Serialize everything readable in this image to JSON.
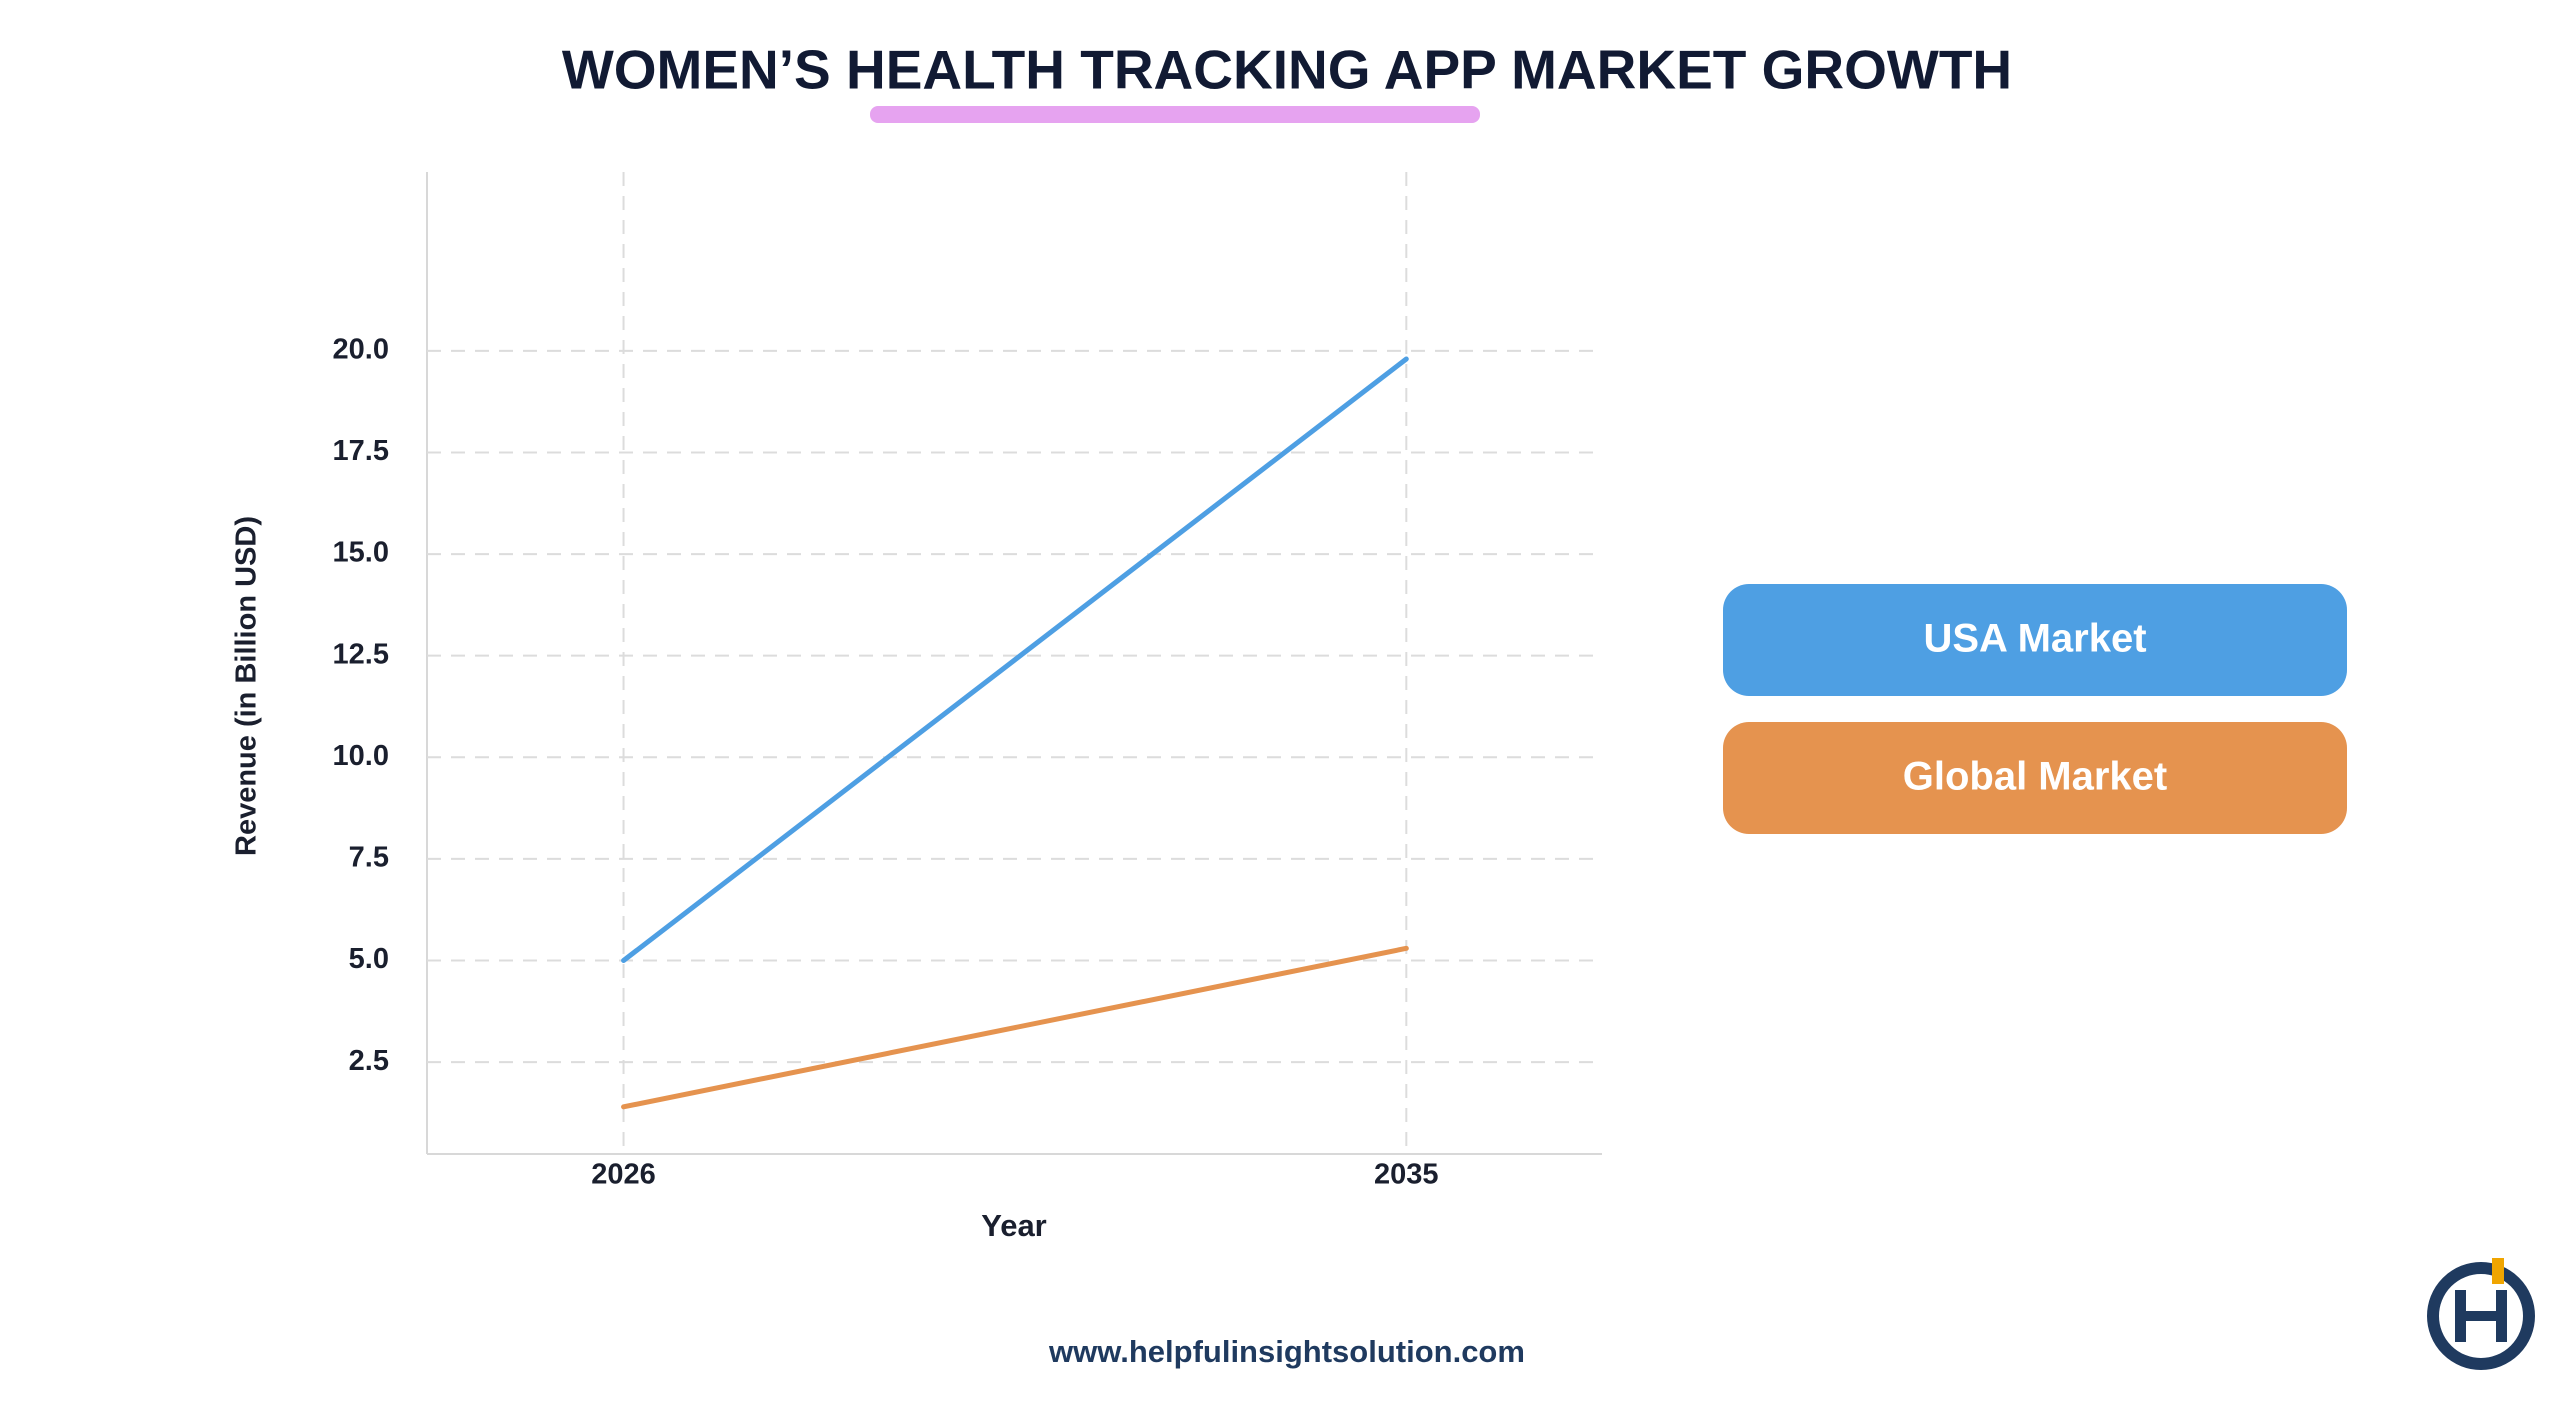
{
  "chart_data": {
    "type": "line",
    "title": "WOMEN’S HEALTH TRACKING APP MARKET GROWTH",
    "x_label": "Year",
    "y_label": "Revenue (in Billion USD)",
    "x": [
      2026,
      2035
    ],
    "series": [
      {
        "name": "USA Market",
        "color": "#4e9fe3",
        "values": [
          5.0,
          19.8
        ]
      },
      {
        "name": "Global Market",
        "color": "#e5934f",
        "values": [
          1.4,
          5.3
        ]
      }
    ],
    "xlim": [
      2023.74,
      2037.25
    ],
    "xticks": [
      2026,
      2035
    ],
    "ylim": [
      0.24,
      24.4
    ],
    "yticks": [
      {
        "value": 2.5,
        "label": "2.5"
      },
      {
        "value": 5,
        "label": "5.0"
      },
      {
        "value": 7.5,
        "label": "7.5"
      },
      {
        "value": 10,
        "label": "10.0"
      },
      {
        "value": 12.5,
        "label": "12.5"
      },
      {
        "value": 15,
        "label": "15.0"
      },
      {
        "value": 17.5,
        "label": "17.5"
      },
      {
        "value": 20,
        "label": "20.0"
      }
    ],
    "grid": true,
    "legend_position": "right",
    "footer": "www.helpfulinsightsolution.com"
  }
}
